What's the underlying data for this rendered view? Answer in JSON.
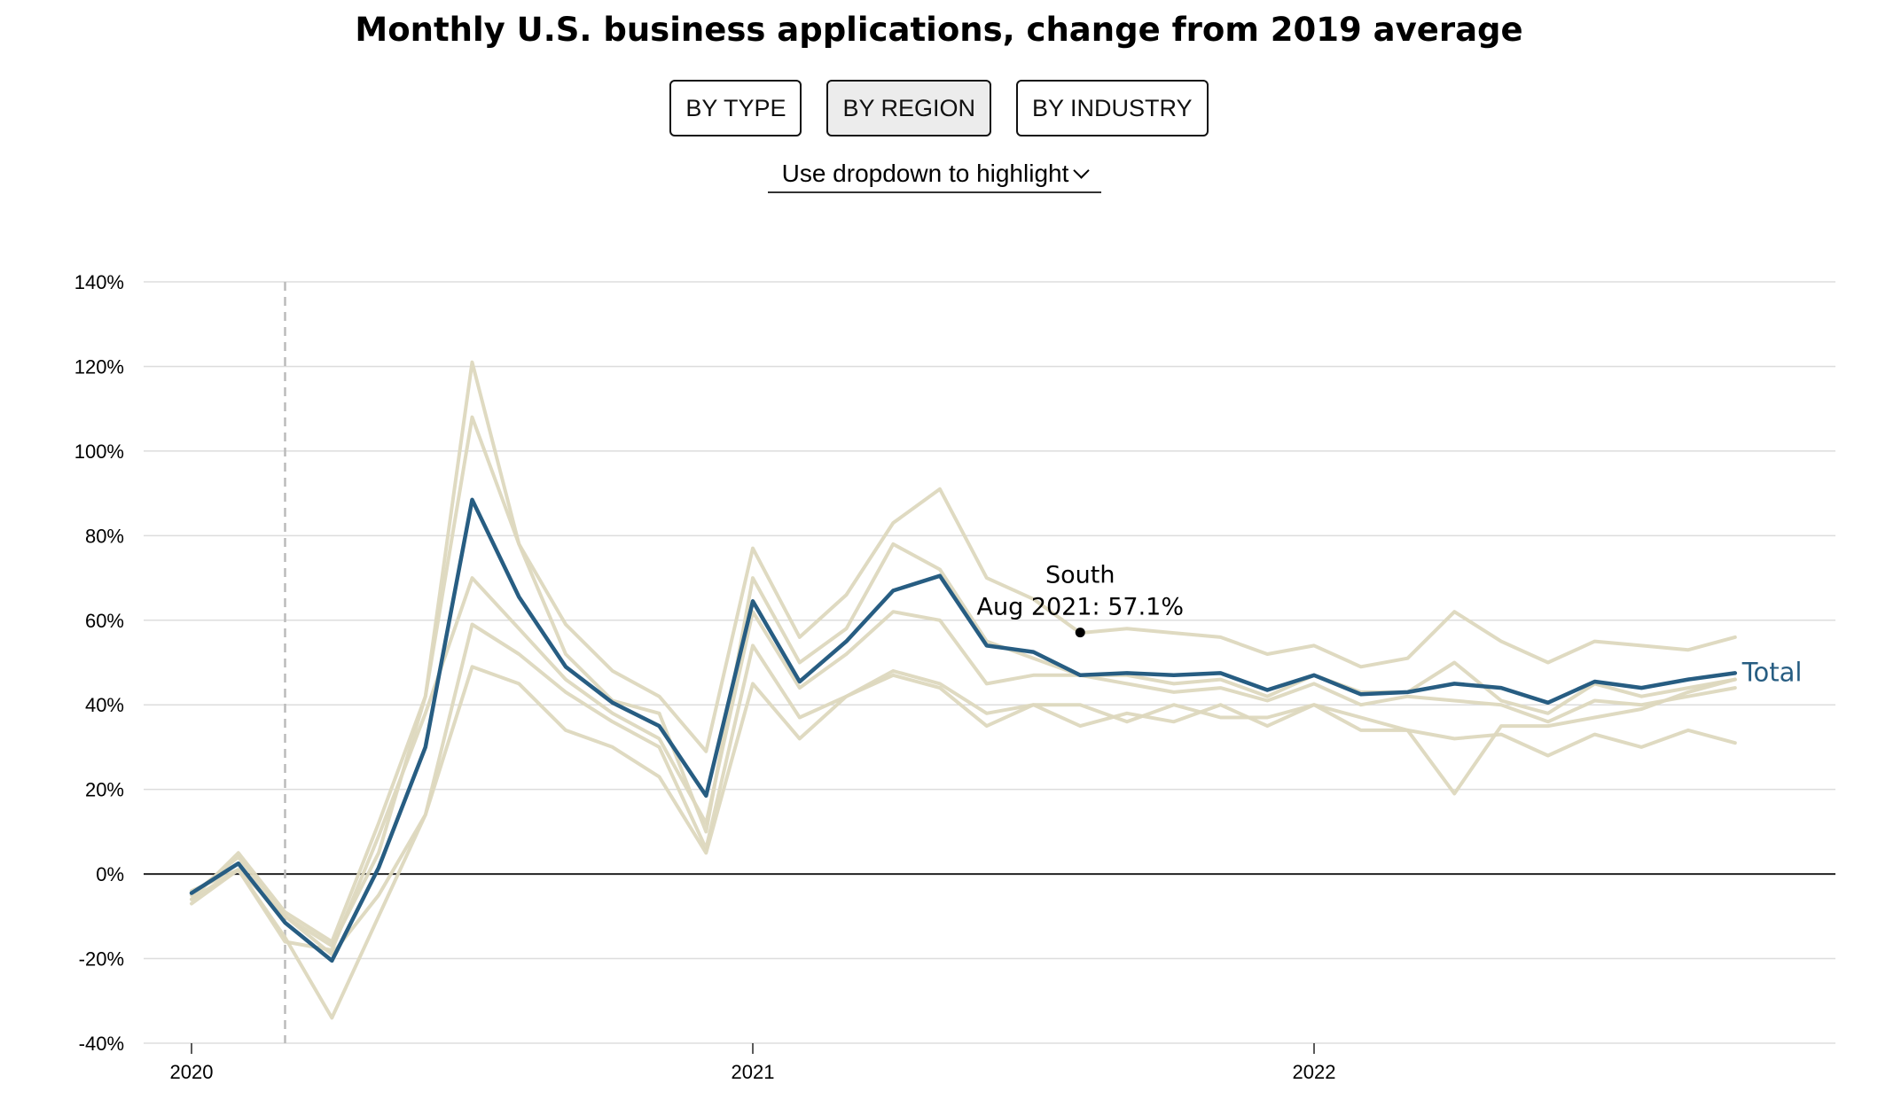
{
  "title": "Monthly U.S. business applications, change from 2019 average",
  "tabs": [
    {
      "label": "BY TYPE",
      "active": false
    },
    {
      "label": "BY REGION",
      "active": true
    },
    {
      "label": "BY INDUSTRY",
      "active": false
    }
  ],
  "dropdown": {
    "label": "Use dropdown to highlight",
    "icon": "chevron-down-icon"
  },
  "colors": {
    "highlight": "#275d82",
    "context": "#ddd8be",
    "grid": "#dddddd",
    "zero": "#222222"
  },
  "chart_data": {
    "type": "line",
    "title": "",
    "xlabel": "",
    "ylabel": "",
    "ylim": [
      -40,
      140
    ],
    "yticks": [
      -40,
      -20,
      0,
      20,
      40,
      60,
      80,
      100,
      120,
      140
    ],
    "ytick_labels": [
      "-40%",
      "-20%",
      "0%",
      "20%",
      "40%",
      "60%",
      "80%",
      "100%",
      "120%",
      "140%"
    ],
    "xlim": [
      "2019-12",
      "2023-10"
    ],
    "xticks": [
      {
        "x": "2020-01",
        "label": "2020"
      },
      {
        "x": "2021-01",
        "label": "2021"
      },
      {
        "x": "2022-01",
        "label": "2022"
      }
    ],
    "x": [
      "2020-01",
      "2020-02",
      "2020-03",
      "2020-04",
      "2020-05",
      "2020-06",
      "2020-07",
      "2020-08",
      "2020-09",
      "2020-10",
      "2020-11",
      "2020-12",
      "2021-01",
      "2021-02",
      "2021-03",
      "2021-04",
      "2021-05",
      "2021-06",
      "2021-07",
      "2021-08",
      "2021-09",
      "2021-10",
      "2021-11",
      "2021-12",
      "2022-01",
      "2022-02",
      "2022-03",
      "2022-04",
      "2022-05",
      "2022-06",
      "2022-07",
      "2022-08",
      "2022-09",
      "2022-10"
    ],
    "reference_line": {
      "x": "2020-03"
    },
    "grid": true,
    "series": [
      {
        "name": "",
        "role": "context",
        "values": [
          -6,
          5,
          -9,
          -16,
          12,
          42,
          121,
          78,
          59,
          48,
          42,
          29,
          77,
          56,
          66,
          83,
          91,
          70,
          65,
          57,
          58,
          57,
          56,
          52,
          54,
          49,
          51,
          62,
          55,
          50,
          55,
          54,
          53,
          56
        ]
      },
      {
        "name": "",
        "role": "context",
        "values": [
          -5,
          4,
          -10,
          -17,
          5,
          42,
          108,
          78,
          52,
          41,
          38,
          10,
          70,
          50,
          58,
          78,
          72,
          55,
          51,
          47,
          47,
          45,
          46,
          42,
          47,
          43,
          43,
          50,
          41,
          38,
          45,
          42,
          44,
          46
        ]
      },
      {
        "name": "",
        "role": "context",
        "values": [
          -4,
          1,
          -10,
          -19,
          -5,
          14,
          59,
          52,
          43,
          36,
          30,
          6,
          54,
          37,
          42,
          47,
          44,
          35,
          40,
          40,
          36,
          40,
          37,
          37,
          40,
          37,
          34,
          19,
          35,
          35,
          37,
          39,
          43,
          46
        ]
      },
      {
        "name": "",
        "role": "context",
        "values": [
          -7,
          1,
          -15,
          -34,
          -10,
          14,
          49,
          45,
          34,
          30,
          23,
          5,
          45,
          32,
          42,
          48,
          45,
          38,
          40,
          35,
          38,
          36,
          40,
          35,
          40,
          34,
          34,
          32,
          33,
          28,
          33,
          30,
          34,
          31
        ]
      },
      {
        "name": "",
        "role": "context",
        "values": [
          -6,
          1,
          -16,
          -18,
          9,
          38,
          70,
          58,
          46,
          38,
          32,
          12,
          62,
          44,
          52,
          62,
          60,
          45,
          47,
          47,
          45,
          43,
          44,
          41,
          45,
          40,
          42,
          41,
          40,
          36,
          41,
          40,
          42,
          44
        ]
      },
      {
        "name": "Total",
        "role": "highlight",
        "values": [
          -4.5,
          2.5,
          -11.5,
          -20.5,
          1.5,
          30,
          88.5,
          65.5,
          49,
          40.5,
          35,
          18.5,
          64.5,
          45.5,
          55,
          67,
          70.5,
          54,
          52.5,
          47,
          47.5,
          47,
          47.5,
          43.5,
          47,
          42.5,
          43,
          45,
          44,
          40.5,
          45.5,
          44,
          46,
          47.5
        ]
      }
    ],
    "annotation": {
      "x": "2021-08",
      "y": 57.1,
      "line1": "South",
      "line2": "Aug 2021: 57.1%"
    },
    "end_label": "Total"
  }
}
